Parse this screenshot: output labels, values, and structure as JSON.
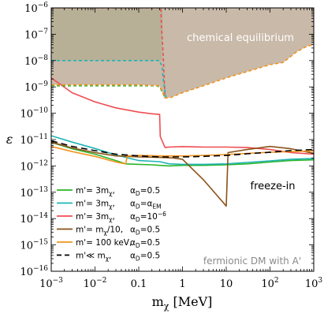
{
  "chart_data": {
    "type": "line",
    "title": "",
    "xlabel": "m_χ [MeV]",
    "ylabel": "ε",
    "xscale": "log",
    "yscale": "log",
    "xlim": [
      0.001,
      1000
    ],
    "ylim": [
      1e-16,
      1e-06
    ],
    "grid": false,
    "legend_position": "bottom-left",
    "x_ticks": [
      {
        "value": 0.001,
        "base": "10",
        "exp": "−3"
      },
      {
        "value": 0.01,
        "base": "10",
        "exp": "−2"
      },
      {
        "value": 0.1,
        "text": "0.1"
      },
      {
        "value": 1,
        "text": "1"
      },
      {
        "value": 10,
        "text": "10"
      },
      {
        "value": 100,
        "base": "10",
        "exp": "2"
      },
      {
        "value": 1000,
        "base": "10",
        "exp": "3"
      }
    ],
    "y_ticks": [
      {
        "value": 1e-16,
        "base": "10",
        "exp": "−16"
      },
      {
        "value": 1e-15,
        "base": "10",
        "exp": "−15"
      },
      {
        "value": 1e-14,
        "base": "10",
        "exp": "−14"
      },
      {
        "value": 1e-13,
        "base": "10",
        "exp": "−13"
      },
      {
        "value": 1e-12,
        "base": "10",
        "exp": "−12"
      },
      {
        "value": 1e-11,
        "base": "10",
        "exp": "−11"
      },
      {
        "value": 1e-10,
        "base": "10",
        "exp": "−10"
      },
      {
        "value": 1e-09,
        "base": "10",
        "exp": "−9"
      },
      {
        "value": 1e-08,
        "base": "10",
        "exp": "−8"
      },
      {
        "value": 1e-07,
        "base": "10",
        "exp": "−7"
      },
      {
        "value": 1e-06,
        "base": "10",
        "exp": "−6"
      }
    ],
    "annotations": {
      "chemical_equilibrium": "chemical equilibrium",
      "freeze_in": "freeze-in",
      "model": "fermionic DM with A'"
    },
    "regions": [
      {
        "name": "chemical equilibrium (m' = m_χ/10, α_D = 0.5)",
        "color": "#9c8060",
        "opacity": 0.55,
        "upper": [
          [
            0.001,
            1e-06
          ],
          [
            1000,
            1e-06
          ]
        ],
        "lower": [
          [
            0.001,
            1.2e-09
          ],
          [
            0.1,
            1.2e-09
          ],
          [
            0.3,
            1.1e-09
          ],
          [
            0.4,
            3.8e-10
          ],
          [
            0.55,
            4e-10
          ],
          [
            1,
            6e-10
          ],
          [
            3,
            1.1e-09
          ],
          [
            10,
            2.2e-09
          ],
          [
            30,
            3.8e-09
          ],
          [
            100,
            7e-09
          ],
          [
            200,
            8.5e-09
          ],
          [
            400,
            2.1e-08
          ],
          [
            700,
            3.5e-08
          ],
          [
            1000,
            4e-08
          ]
        ]
      },
      {
        "name": "chemical equilibrium (m' = 3m_χ)",
        "color": "#a7a987",
        "opacity": 0.55,
        "upper": [
          [
            0.001,
            1e-06
          ],
          [
            0.35,
            1e-06
          ]
        ],
        "lower": [
          [
            0.001,
            1e-08
          ],
          [
            0.3,
            1e-08
          ],
          [
            0.35,
            1e-08
          ]
        ]
      }
    ],
    "series": [
      {
        "label": "m'= 3m_χ,     α_D=0.5",
        "color": "#2ab52a",
        "style": "solid",
        "values": [
          [
            0.001,
            7.8e-12
          ],
          [
            0.003,
            4.5e-12
          ],
          [
            0.01,
            2.8e-12
          ],
          [
            0.03,
            1.6e-12
          ],
          [
            0.05,
            1.2e-12
          ],
          [
            0.1,
            1.15e-12
          ],
          [
            0.2,
            1.1e-12
          ],
          [
            0.3,
            1.05e-12
          ],
          [
            0.5,
            1e-12
          ],
          [
            1,
            1.05e-12
          ],
          [
            3,
            1.05e-12
          ],
          [
            10,
            1.1e-12
          ],
          [
            30,
            1.2e-12
          ],
          [
            100,
            1.4e-12
          ],
          [
            300,
            1.6e-12
          ],
          [
            1000,
            1.7e-12
          ]
        ]
      },
      {
        "label": "m'= 3m_χ,     α_D=α_EM",
        "color": "#1fb4b4",
        "style": "solid",
        "values": [
          [
            0.001,
            1.4e-11
          ],
          [
            0.003,
            8e-12
          ],
          [
            0.01,
            4.6e-12
          ],
          [
            0.03,
            2.6e-12
          ],
          [
            0.1,
            1.6e-12
          ],
          [
            0.2,
            1.5e-12
          ],
          [
            0.3,
            1.45e-12
          ],
          [
            0.5,
            1.2e-12
          ],
          [
            1,
            1.15e-12
          ],
          [
            3,
            1.15e-12
          ],
          [
            10,
            1.2e-12
          ],
          [
            30,
            1.35e-12
          ],
          [
            100,
            1.55e-12
          ],
          [
            300,
            1.8e-12
          ],
          [
            1000,
            1.9e-12
          ]
        ]
      },
      {
        "label": "m'= 3m_χ,     α_D=10⁻⁶",
        "color": "#ef4d52",
        "style": "solid",
        "values": [
          [
            0.001,
            2.2e-09
          ],
          [
            0.003,
            6e-10
          ],
          [
            0.01,
            2.7e-10
          ],
          [
            0.03,
            1.6e-10
          ],
          [
            0.1,
            1.1e-10
          ],
          [
            0.2,
            9.5e-11
          ],
          [
            0.3,
            9e-11
          ],
          [
            0.31,
            1.3e-11
          ],
          [
            0.4,
            5e-12
          ],
          [
            0.5,
            5.2e-12
          ],
          [
            1,
            5.4e-12
          ],
          [
            3,
            5.2e-12
          ],
          [
            10,
            5.2e-12
          ],
          [
            30,
            5e-12
          ],
          [
            100,
            4.2e-12
          ],
          [
            300,
            3.2e-12
          ],
          [
            1000,
            2.8e-12
          ]
        ]
      },
      {
        "label": "m'= m_χ/10,    α_D=0.5",
        "color": "#8a5218",
        "style": "solid",
        "values": [
          [
            0.001,
            8e-12
          ],
          [
            0.003,
            4.8e-12
          ],
          [
            0.01,
            3.2e-12
          ],
          [
            0.03,
            2.4e-12
          ],
          [
            0.1,
            2.2e-12
          ],
          [
            0.3,
            2.1e-12
          ],
          [
            0.6,
            2e-12
          ],
          [
            1,
            1.8e-12
          ],
          [
            3,
            3e-13
          ],
          [
            10,
            3e-14
          ],
          [
            11,
            3.2e-12
          ],
          [
            30,
            4.2e-12
          ],
          [
            100,
            5.5e-12
          ],
          [
            300,
            4.5e-12
          ],
          [
            1000,
            3e-12
          ]
        ]
      },
      {
        "label": "m'= 100 keV,   α_D=0.5",
        "color": "#f2941e",
        "style": "solid",
        "values": [
          [
            0.001,
            5.5e-12
          ],
          [
            0.003,
            3.5e-12
          ],
          [
            0.01,
            2.3e-12
          ],
          [
            0.03,
            1.4e-12
          ],
          [
            0.05,
            1.2e-12
          ],
          [
            0.055,
            2.4e-12
          ],
          [
            0.1,
            2.5e-12
          ],
          [
            0.3,
            2.4e-12
          ],
          [
            1,
            2.4e-12
          ],
          [
            3,
            2.5e-12
          ],
          [
            10,
            2.7e-12
          ],
          [
            30,
            3e-12
          ],
          [
            100,
            3.3e-12
          ],
          [
            300,
            3.5e-12
          ],
          [
            1000,
            3.7e-12
          ]
        ]
      },
      {
        "label": "m'≪ m_χ,     α_D=0.5",
        "color": "#000000",
        "style": "dashed",
        "values": [
          [
            0.001,
            9e-12
          ],
          [
            0.003,
            5.5e-12
          ],
          [
            0.01,
            3.8e-12
          ],
          [
            0.03,
            2.8e-12
          ],
          [
            0.1,
            2.4e-12
          ],
          [
            0.3,
            2.2e-12
          ],
          [
            1,
            2.2e-12
          ],
          [
            3,
            2.3e-12
          ],
          [
            10,
            2.5e-12
          ],
          [
            30,
            2.9e-12
          ],
          [
            100,
            3.3e-12
          ],
          [
            300,
            3.8e-12
          ],
          [
            1000,
            4.2e-12
          ]
        ]
      },
      {
        "label": "",
        "color": "#ef4d52",
        "style": "dashed",
        "values": [
          [
            0.001,
            1e-06
          ],
          [
            0.32,
            1e-06
          ],
          [
            0.33,
            2e-07
          ],
          [
            0.36,
            2e-08
          ],
          [
            0.4,
            3.8e-10
          ]
        ]
      },
      {
        "label": "",
        "color": "#1fb4b4",
        "style": "dashed",
        "values": [
          [
            0.001,
            1e-08
          ],
          [
            0.3,
            1e-08
          ],
          [
            0.34,
            6e-09
          ],
          [
            0.37,
            1.5e-09
          ],
          [
            0.42,
            3.8e-10
          ]
        ]
      },
      {
        "label": "",
        "color": "#2ab52a",
        "style": "dashed",
        "values": [
          [
            0.001,
            1.1e-09
          ],
          [
            0.25,
            1.1e-09
          ],
          [
            0.3,
            1e-09
          ],
          [
            0.35,
            6e-10
          ],
          [
            0.4,
            3.8e-10
          ]
        ]
      },
      {
        "label": "",
        "color": "#f2941e",
        "style": "dashed",
        "values": [
          [
            0.001,
            1.2e-09
          ],
          [
            0.1,
            1.2e-09
          ],
          [
            0.3,
            1.1e-09
          ],
          [
            0.4,
            3.8e-10
          ],
          [
            0.55,
            4e-10
          ],
          [
            1,
            6e-10
          ],
          [
            3,
            1.1e-09
          ],
          [
            10,
            2.2e-09
          ],
          [
            30,
            3.8e-09
          ],
          [
            100,
            7e-09
          ],
          [
            200,
            8.5e-09
          ],
          [
            400,
            2.1e-08
          ],
          [
            700,
            3.5e-08
          ],
          [
            1000,
            4e-08
          ]
        ]
      }
    ],
    "legend": [
      {
        "color": "#2ab52a",
        "style": "solid",
        "lead": "m'= 3m",
        "lead_sub": "χ",
        "lead_tail": ",",
        "alpha_prefix": "α",
        "alpha_sub": "D",
        "alpha_value": "=0.5",
        "alpha_sup": ""
      },
      {
        "color": "#1fb4b4",
        "style": "solid",
        "lead": "m'= 3m",
        "lead_sub": "χ",
        "lead_tail": ",",
        "alpha_prefix": "α",
        "alpha_sub": "D",
        "alpha_value": "=α",
        "alpha_sup": "EM"
      },
      {
        "color": "#ef4d52",
        "style": "solid",
        "lead": "m'= 3m",
        "lead_sub": "χ",
        "lead_tail": ",",
        "alpha_prefix": "α",
        "alpha_sub": "D",
        "alpha_value": "=10",
        "alpha_sup": "−6"
      },
      {
        "color": "#8a5218",
        "style": "solid",
        "lead": "m'= m",
        "lead_sub": "χ",
        "lead_tail": "/10,",
        "alpha_prefix": "α",
        "alpha_sub": "D",
        "alpha_value": "=0.5",
        "alpha_sup": ""
      },
      {
        "color": "#f2941e",
        "style": "solid",
        "lead": "m'= 100 keV,",
        "lead_sub": "",
        "lead_tail": "",
        "alpha_prefix": "α",
        "alpha_sub": "D",
        "alpha_value": "=0.5",
        "alpha_sup": ""
      },
      {
        "color": "#000000",
        "style": "dashed",
        "lead": "m'≪ m",
        "lead_sub": "χ",
        "lead_tail": ",",
        "alpha_prefix": "α",
        "alpha_sub": "D",
        "alpha_value": "=0.5",
        "alpha_sup": ""
      }
    ]
  }
}
